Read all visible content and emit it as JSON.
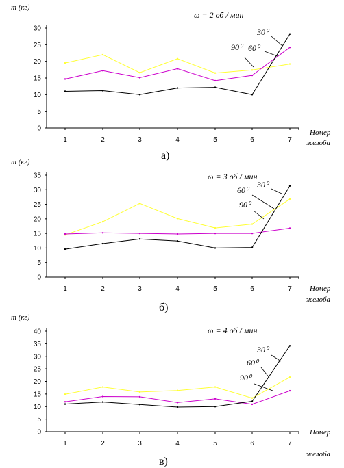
{
  "chart_data": [
    {
      "type": "line",
      "ylabel": "m  (кг)",
      "xlabel": "Номер желоба",
      "xlabel_line1": "Номер",
      "xlabel_line2": "желоба",
      "annotation": "ω = 2 об / мин",
      "caption": "а)",
      "categories": [
        1,
        2,
        3,
        4,
        5,
        6,
        7
      ],
      "ylim": [
        0,
        30
      ],
      "ytick_step": 5,
      "series": [
        {
          "name": "30⁰",
          "color": "#000000",
          "values": [
            11,
            11.2,
            10,
            12,
            12.2,
            10,
            28.2
          ]
        },
        {
          "name": "60⁰",
          "color": "#cc00cc",
          "values": [
            14.7,
            17.2,
            15.1,
            17.8,
            14.2,
            15.8,
            24.2
          ]
        },
        {
          "name": "90⁰",
          "color": "#ffff33",
          "values": [
            19.5,
            22,
            16.6,
            20.8,
            16.5,
            17.4,
            19.2
          ]
        }
      ]
    },
    {
      "type": "line",
      "ylabel": "m  (кг)",
      "xlabel": "Номер желоба",
      "xlabel_line1": "Номер",
      "xlabel_line2": "желоба",
      "annotation": "ω = 3 об / мин",
      "caption": "б)",
      "categories": [
        1,
        2,
        3,
        4,
        5,
        6,
        7
      ],
      "ylim": [
        0,
        35
      ],
      "ytick_step": 5,
      "series": [
        {
          "name": "30⁰",
          "color": "#000000",
          "values": [
            9.6,
            11.5,
            13.1,
            12.4,
            10,
            10.2,
            31.3
          ]
        },
        {
          "name": "60⁰",
          "color": "#cc00cc",
          "values": [
            14.8,
            15.2,
            15,
            14.8,
            15,
            15,
            16.8
          ]
        },
        {
          "name": "90⁰",
          "color": "#ffff33",
          "values": [
            14.5,
            19,
            25.3,
            20.1,
            16.9,
            18.2,
            26.8
          ]
        }
      ]
    },
    {
      "type": "line",
      "ylabel": "m  (кг)",
      "xlabel": "Номер желоба",
      "xlabel_line1": "Номер",
      "xlabel_line2": "желоба",
      "annotation": "ω = 4 об / мин",
      "caption": "в)",
      "categories": [
        1,
        2,
        3,
        4,
        5,
        6,
        7
      ],
      "ylim": [
        0,
        40
      ],
      "ytick_step": 5,
      "series": [
        {
          "name": "30⁰",
          "color": "#000000",
          "values": [
            11,
            11.8,
            10.8,
            9.8,
            10,
            12.1,
            34.2
          ]
        },
        {
          "name": "60⁰",
          "color": "#cc00cc",
          "values": [
            11.9,
            14,
            13.9,
            11.6,
            13.1,
            10.9,
            16.3
          ]
        },
        {
          "name": "90⁰",
          "color": "#ffff33",
          "values": [
            14.9,
            17.8,
            15.8,
            16.4,
            17.8,
            13.4,
            21.7
          ]
        }
      ]
    }
  ]
}
